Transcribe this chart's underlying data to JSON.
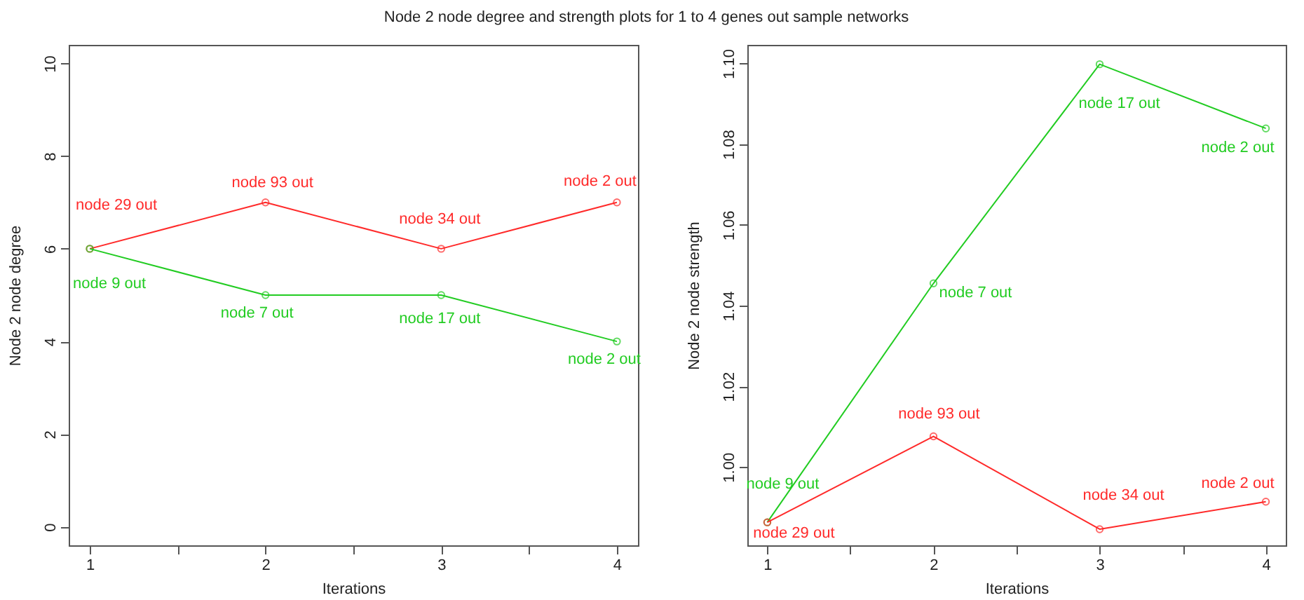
{
  "chart_data": [
    {
      "type": "line",
      "title": "Node 2 node degree and strength plots for 1 to 4 genes out sample networks",
      "xlabel": "Iterations",
      "ylabel": "Node 2 node degree",
      "x": [
        1,
        2,
        3,
        4
      ],
      "xlim": [
        0.88,
        4.12
      ],
      "xticks": [
        1,
        {
          "value": 1.5,
          "label": null
        },
        2,
        {
          "value": 2.5,
          "label": null
        },
        3,
        {
          "value": 3.5,
          "label": null
        },
        4
      ],
      "ylim": [
        -0.4,
        10.4
      ],
      "yticks": [
        0,
        2,
        4,
        6,
        8,
        10
      ],
      "grid": false,
      "marker": "circle",
      "line_style": "solid",
      "series": [
        {
          "color": "#ff2a2a",
          "values": [
            6,
            7,
            6,
            7
          ],
          "value_labels": [
            "node 29 out",
            "node 93 out",
            "node 34 out",
            "node 2 out"
          ]
        },
        {
          "color": "#22cc22",
          "values": [
            6,
            5,
            5,
            4
          ],
          "value_labels": [
            "node 9 out",
            "node 7 out",
            "node 17 out",
            "node 2 out"
          ]
        }
      ]
    },
    {
      "type": "line",
      "xlabel": "Iterations",
      "ylabel": "Node 2 node strength",
      "x": [
        1,
        2,
        3,
        4
      ],
      "xlim": [
        0.88,
        4.12
      ],
      "xticks": [
        1,
        {
          "value": 1.5,
          "label": null
        },
        2,
        {
          "value": 2.5,
          "label": null
        },
        3,
        {
          "value": 3.5,
          "label": null
        },
        4
      ],
      "ylim": [
        0.9806,
        1.1046
      ],
      "yticks": [
        {
          "value": 1,
          "label": "1.00"
        },
        {
          "value": 1.02,
          "label": "1.02"
        },
        {
          "value": 1.04,
          "label": "1.04"
        },
        {
          "value": 1.06,
          "label": "1.06"
        },
        {
          "value": 1.08,
          "label": "1.08"
        },
        {
          "value": 1.1,
          "label": "1.10"
        }
      ],
      "grid": false,
      "marker": "circle",
      "line_style": "solid",
      "series": [
        {
          "color": "#22cc22",
          "values": [
            0.9863,
            1.0455,
            1.0998,
            1.0839
          ],
          "value_labels": [
            "node 9 out",
            "node 7 out",
            "node 17 out",
            "node 2 out"
          ]
        },
        {
          "color": "#ff2a2a",
          "values": [
            0.9863,
            1.0076,
            0.9846,
            0.9914
          ],
          "value_labels": [
            "node 29 out",
            "node 93 out",
            "node 34 out",
            "node 2 out"
          ]
        }
      ]
    }
  ]
}
